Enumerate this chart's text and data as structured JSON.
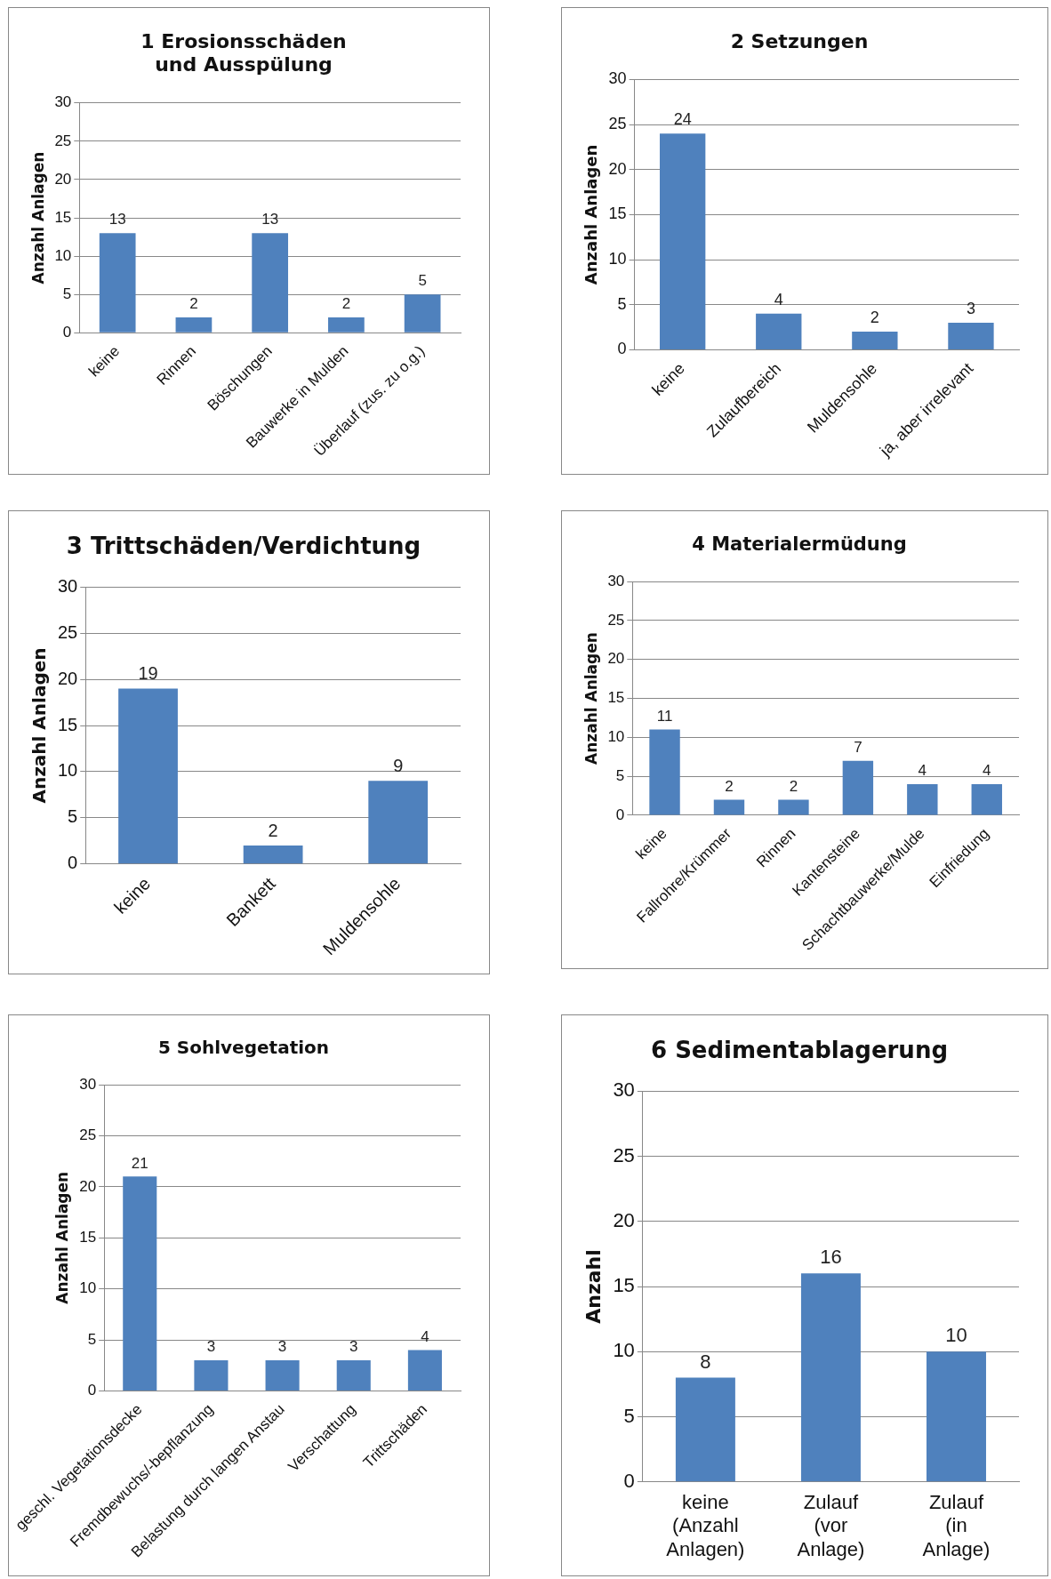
{
  "chart_data": [
    {
      "type": "bar",
      "title": "1 Erosionsschäden und Ausspülung",
      "ylabel": "Anzahl Anlagen",
      "categories": [
        "keine",
        "Rinnen",
        "Böschungen",
        "Bauwerke in Mulden",
        "Überlauf (zus. zu o.g.)"
      ],
      "values": [
        13,
        2,
        13,
        2,
        5
      ],
      "color": "#4f81bd",
      "ylim": [
        0,
        30
      ],
      "yticks": [
        0,
        5,
        10,
        15,
        20,
        25,
        30
      ],
      "grid": "y",
      "data_labels": true,
      "legend": false
    },
    {
      "type": "bar",
      "title": "2 Setzungen",
      "ylabel": "Anzahl Anlagen",
      "categories": [
        "keine",
        "Zulaufbereich",
        "Muldensohle",
        "ja, aber irrelevant"
      ],
      "values": [
        24,
        4,
        2,
        3
      ],
      "color": "#4f81bd",
      "ylim": [
        0,
        30
      ],
      "yticks": [
        0,
        5,
        10,
        15,
        20,
        25,
        30
      ],
      "grid": "y",
      "data_labels": true,
      "legend": false
    },
    {
      "type": "bar",
      "title": "3 Trittschäden/Verdichtung",
      "ylabel": "Anzahl Anlagen",
      "categories": [
        "keine",
        "Bankett",
        "Muldensohle"
      ],
      "values": [
        19,
        2,
        9
      ],
      "color": "#4f81bd",
      "ylim": [
        0,
        30
      ],
      "yticks": [
        0,
        5,
        10,
        15,
        20,
        25,
        30
      ],
      "grid": "y",
      "data_labels": true,
      "legend": false
    },
    {
      "type": "bar",
      "title": "4 Materialermüdung",
      "ylabel": "Anzahl Anlagen",
      "categories": [
        "keine",
        "Fallrohre/Krümmer",
        "Rinnen",
        "Kantensteine",
        "Schachtbauwerke/Mulde",
        "Einfriedung"
      ],
      "values": [
        11,
        2,
        2,
        7,
        4,
        4
      ],
      "color": "#4f81bd",
      "ylim": [
        0,
        30
      ],
      "yticks": [
        0,
        5,
        10,
        15,
        20,
        25,
        30
      ],
      "grid": "y",
      "data_labels": true,
      "legend": false
    },
    {
      "type": "bar",
      "title": "5 Sohlvegetation",
      "ylabel": "Anzahl Anlagen",
      "categories": [
        "geschl. Vegetationsdecke",
        "Fremdbewuchs/-bepflanzung",
        "Belastung durch langen Anstau",
        "Verschattung",
        "Trittschäden"
      ],
      "values": [
        21,
        3,
        3,
        3,
        4
      ],
      "color": "#4f81bd",
      "ylim": [
        0,
        30
      ],
      "yticks": [
        0,
        5,
        10,
        15,
        20,
        25,
        30
      ],
      "grid": "y",
      "data_labels": true,
      "legend": false
    },
    {
      "type": "bar",
      "title": "6 Sedimentablagerung",
      "ylabel": "Anzahl",
      "categories": [
        "keine (Anzahl Anlagen)",
        "Zulauf (vor Anlage)",
        "Zulauf (in Anlage)"
      ],
      "values": [
        8,
        16,
        10
      ],
      "color": "#4f81bd",
      "ylim": [
        0,
        30
      ],
      "yticks": [
        0,
        5,
        10,
        15,
        20,
        25,
        30
      ],
      "grid": "y",
      "data_labels": true,
      "legend": false
    }
  ]
}
